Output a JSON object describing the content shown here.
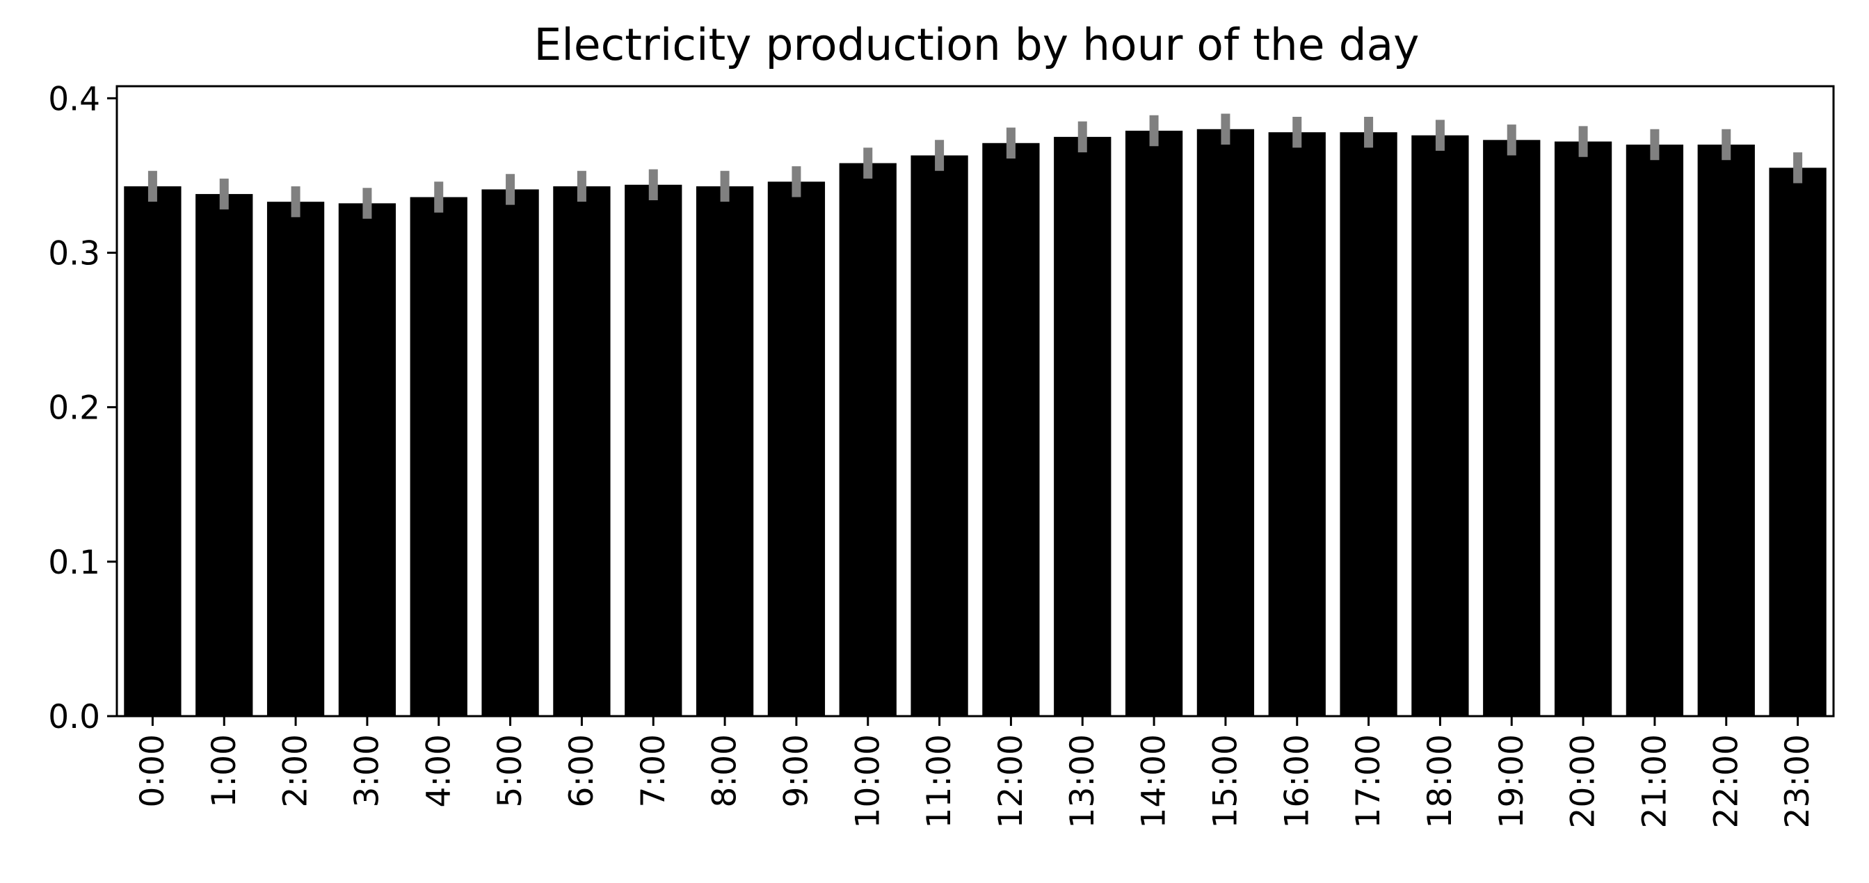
{
  "chart_data": {
    "type": "bar",
    "title": "Electricity production by hour of the day",
    "xlabel": "",
    "ylabel": "",
    "categories": [
      "0:00",
      "1:00",
      "2:00",
      "3:00",
      "4:00",
      "5:00",
      "6:00",
      "7:00",
      "8:00",
      "9:00",
      "10:00",
      "11:00",
      "12:00",
      "13:00",
      "14:00",
      "15:00",
      "16:00",
      "17:00",
      "18:00",
      "19:00",
      "20:00",
      "21:00",
      "22:00",
      "23:00"
    ],
    "values": [
      0.343,
      0.338,
      0.333,
      0.332,
      0.336,
      0.341,
      0.343,
      0.344,
      0.343,
      0.346,
      0.358,
      0.363,
      0.371,
      0.375,
      0.379,
      0.38,
      0.378,
      0.378,
      0.376,
      0.373,
      0.372,
      0.37,
      0.37,
      0.355
    ],
    "error_low": [
      0.333,
      0.328,
      0.323,
      0.322,
      0.326,
      0.331,
      0.333,
      0.334,
      0.333,
      0.336,
      0.348,
      0.353,
      0.361,
      0.365,
      0.369,
      0.37,
      0.368,
      0.368,
      0.366,
      0.363,
      0.362,
      0.36,
      0.36,
      0.345
    ],
    "error_high": [
      0.353,
      0.348,
      0.343,
      0.342,
      0.346,
      0.351,
      0.353,
      0.354,
      0.353,
      0.356,
      0.368,
      0.373,
      0.381,
      0.385,
      0.389,
      0.39,
      0.388,
      0.388,
      0.386,
      0.383,
      0.382,
      0.38,
      0.38,
      0.365
    ],
    "ylim": [
      0.0,
      0.4078
    ],
    "yticks": [
      0.0,
      0.1,
      0.2,
      0.3,
      0.4
    ],
    "ytick_labels": [
      "0.0",
      "0.1",
      "0.2",
      "0.3",
      "0.4"
    ],
    "bar_color": "#000000",
    "error_bar_color": "#808080",
    "grid": false,
    "legend": "none"
  }
}
